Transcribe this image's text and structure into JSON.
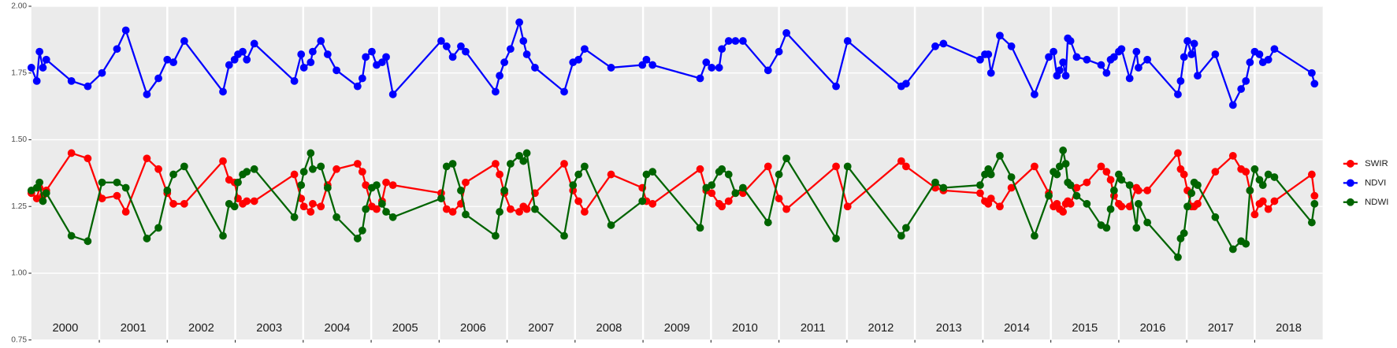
{
  "chart_data": {
    "type": "line",
    "xlim": [
      2000,
      2019
    ],
    "ylim": [
      0.75,
      2.0
    ],
    "yticks": [
      0.75,
      {
        "value": 1,
        "label": "1.00"
      },
      1.25,
      {
        "value": 1.5,
        "label": "1.50"
      },
      1.75,
      {
        "value": 2,
        "label": "2.00"
      }
    ],
    "xgrid": [
      2001,
      2002,
      2003,
      2004,
      2005,
      2006,
      2007,
      2008,
      2009,
      2010,
      2011,
      2012,
      2013,
      2014,
      2015,
      2016,
      2017,
      2018
    ],
    "xticks": [
      {
        "value": 2000.5,
        "label": "2000"
      },
      {
        "value": 2001.5,
        "label": "2001"
      },
      {
        "value": 2002.5,
        "label": "2002"
      },
      {
        "value": 2003.5,
        "label": "2003"
      },
      {
        "value": 2004.5,
        "label": "2004"
      },
      {
        "value": 2005.5,
        "label": "2005"
      },
      {
        "value": 2006.5,
        "label": "2006"
      },
      {
        "value": 2007.5,
        "label": "2007"
      },
      {
        "value": 2008.5,
        "label": "2008"
      },
      {
        "value": 2009.5,
        "label": "2009"
      },
      {
        "value": 2010.5,
        "label": "2010"
      },
      {
        "value": 2011.5,
        "label": "2011"
      },
      {
        "value": 2012.5,
        "label": "2012"
      },
      {
        "value": 2013.5,
        "label": "2013"
      },
      {
        "value": 2014.5,
        "label": "2014"
      },
      {
        "value": 2015.5,
        "label": "2015"
      },
      {
        "value": 2016.5,
        "label": "2016"
      },
      {
        "value": 2017.5,
        "label": "2017"
      },
      {
        "value": 2018.5,
        "label": "2018"
      }
    ],
    "grid": true,
    "legend": "right",
    "x": [
      2000,
      2000.08,
      2000.12,
      2000.17,
      2000.22,
      2000.59,
      2000.83,
      2001.04,
      2001.26,
      2001.39,
      2001.7,
      2001.87,
      2002,
      2002.09,
      2002.25,
      2002.82,
      2002.91,
      2002.99,
      2003.04,
      2003.11,
      2003.17,
      2003.28,
      2003.87,
      2003.97,
      2004.01,
      2004.11,
      2004.14,
      2004.26,
      2004.36,
      2004.49,
      2004.8,
      2004.87,
      2004.92,
      2005.01,
      2005.08,
      2005.16,
      2005.22,
      2005.32,
      2006.03,
      2006.11,
      2006.2,
      2006.32,
      2006.39,
      2006.83,
      2006.89,
      2006.96,
      2007.05,
      2007.18,
      2007.24,
      2007.29,
      2007.41,
      2007.84,
      2007.97,
      2008.05,
      2008.14,
      2008.53,
      2008.99,
      2009.05,
      2009.14,
      2009.84,
      2009.93,
      2010.01,
      2010.12,
      2010.16,
      2010.26,
      2010.36,
      2010.47,
      2010.84,
      2011,
      2011.11,
      2011.84,
      2012.01,
      2012.8,
      2012.87,
      2013.3,
      2013.42,
      2013.96,
      2014.03,
      2014.08,
      2014.12,
      2014.25,
      2014.42,
      2014.76,
      2014.97,
      2015.04,
      2015.09,
      2015.13,
      2015.18,
      2015.22,
      2015.25,
      2015.29,
      2015.38,
      2015.53,
      2015.74,
      2015.82,
      2015.88,
      2015.93,
      2016,
      2016.04,
      2016.16,
      2016.26,
      2016.29,
      2016.42,
      2016.87,
      2016.91,
      2016.96,
      2017.01,
      2017.07,
      2017.11,
      2017.16,
      2017.42,
      2017.68,
      2017.8,
      2017.87,
      2017.93,
      2018,
      2018.07,
      2018.12,
      2018.2,
      2018.29,
      2018.84,
      2018.88
    ],
    "series": [
      {
        "name": "SWIR",
        "color": "#ff0000",
        "values": [
          1.3,
          1.28,
          1.32,
          1.29,
          1.31,
          1.45,
          1.43,
          1.28,
          1.29,
          1.23,
          1.43,
          1.39,
          1.3,
          1.26,
          1.26,
          1.42,
          1.35,
          1.34,
          1.28,
          1.26,
          1.27,
          1.27,
          1.37,
          1.28,
          1.25,
          1.23,
          1.26,
          1.25,
          1.33,
          1.39,
          1.41,
          1.38,
          1.33,
          1.25,
          1.24,
          1.27,
          1.34,
          1.33,
          1.3,
          1.24,
          1.23,
          1.26,
          1.34,
          1.41,
          1.37,
          1.3,
          1.24,
          1.23,
          1.25,
          1.24,
          1.3,
          1.41,
          1.31,
          1.27,
          1.23,
          1.37,
          1.32,
          1.27,
          1.26,
          1.39,
          1.31,
          1.3,
          1.26,
          1.25,
          1.27,
          1.3,
          1.3,
          1.4,
          1.28,
          1.24,
          1.4,
          1.25,
          1.42,
          1.4,
          1.32,
          1.31,
          1.3,
          1.27,
          1.26,
          1.28,
          1.25,
          1.32,
          1.4,
          1.3,
          1.25,
          1.26,
          1.24,
          1.23,
          1.26,
          1.27,
          1.26,
          1.32,
          1.34,
          1.4,
          1.38,
          1.35,
          1.29,
          1.26,
          1.25,
          1.25,
          1.32,
          1.31,
          1.31,
          1.45,
          1.39,
          1.37,
          1.31,
          1.25,
          1.25,
          1.26,
          1.38,
          1.44,
          1.39,
          1.38,
          1.31,
          1.22,
          1.26,
          1.27,
          1.24,
          1.27,
          1.37,
          1.29
        ]
      },
      {
        "name": "NDVI",
        "color": "#0000ff",
        "values": [
          1.77,
          1.72,
          1.83,
          1.77,
          1.8,
          1.72,
          1.7,
          1.75,
          1.84,
          1.91,
          1.67,
          1.73,
          1.8,
          1.79,
          1.87,
          1.68,
          1.78,
          1.8,
          1.82,
          1.83,
          1.8,
          1.86,
          1.72,
          1.82,
          1.77,
          1.79,
          1.83,
          1.87,
          1.82,
          1.76,
          1.7,
          1.73,
          1.81,
          1.83,
          1.78,
          1.79,
          1.81,
          1.67,
          1.87,
          1.85,
          1.81,
          1.85,
          1.83,
          1.68,
          1.74,
          1.79,
          1.84,
          1.94,
          1.87,
          1.82,
          1.77,
          1.68,
          1.79,
          1.8,
          1.84,
          1.77,
          1.78,
          1.8,
          1.78,
          1.73,
          1.79,
          1.77,
          1.77,
          1.84,
          1.87,
          1.87,
          1.87,
          1.76,
          1.83,
          1.9,
          1.7,
          1.87,
          1.7,
          1.71,
          1.85,
          1.86,
          1.8,
          1.82,
          1.82,
          1.75,
          1.89,
          1.85,
          1.67,
          1.81,
          1.83,
          1.74,
          1.76,
          1.79,
          1.74,
          1.88,
          1.87,
          1.81,
          1.8,
          1.78,
          1.75,
          1.8,
          1.81,
          1.83,
          1.84,
          1.73,
          1.83,
          1.77,
          1.8,
          1.67,
          1.72,
          1.81,
          1.87,
          1.82,
          1.86,
          1.74,
          1.82,
          1.63,
          1.69,
          1.72,
          1.79,
          1.83,
          1.82,
          1.79,
          1.8,
          1.84,
          1.75,
          1.71
        ]
      },
      {
        "name": "NDWI",
        "color": "#006400",
        "values": [
          1.31,
          1.32,
          1.34,
          1.27,
          1.3,
          1.14,
          1.12,
          1.34,
          1.34,
          1.32,
          1.13,
          1.17,
          1.31,
          1.37,
          1.4,
          1.14,
          1.26,
          1.25,
          1.34,
          1.37,
          1.38,
          1.39,
          1.21,
          1.33,
          1.38,
          1.45,
          1.39,
          1.4,
          1.32,
          1.21,
          1.13,
          1.16,
          1.24,
          1.32,
          1.33,
          1.26,
          1.23,
          1.21,
          1.28,
          1.4,
          1.41,
          1.31,
          1.22,
          1.14,
          1.23,
          1.31,
          1.41,
          1.44,
          1.42,
          1.45,
          1.24,
          1.14,
          1.33,
          1.37,
          1.4,
          1.18,
          1.27,
          1.37,
          1.38,
          1.17,
          1.32,
          1.33,
          1.38,
          1.39,
          1.37,
          1.3,
          1.32,
          1.19,
          1.37,
          1.43,
          1.13,
          1.4,
          1.14,
          1.17,
          1.34,
          1.32,
          1.33,
          1.37,
          1.39,
          1.37,
          1.44,
          1.36,
          1.14,
          1.29,
          1.38,
          1.37,
          1.4,
          1.46,
          1.41,
          1.34,
          1.33,
          1.29,
          1.26,
          1.18,
          1.17,
          1.24,
          1.31,
          1.37,
          1.35,
          1.33,
          1.17,
          1.26,
          1.19,
          1.06,
          1.13,
          1.15,
          1.25,
          1.3,
          1.34,
          1.33,
          1.21,
          1.09,
          1.12,
          1.11,
          1.31,
          1.39,
          1.35,
          1.33,
          1.37,
          1.36,
          1.19,
          1.26
        ]
      }
    ]
  }
}
